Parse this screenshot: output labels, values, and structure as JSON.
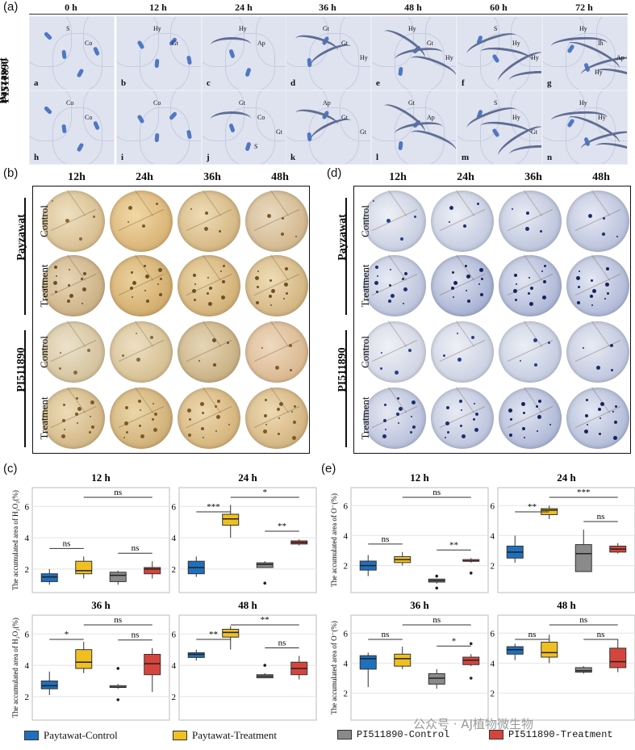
{
  "panel_labels": {
    "a": "(a)",
    "b": "(b)",
    "c": "(c)",
    "d": "(d)",
    "e": "(e)"
  },
  "panel_a": {
    "times": [
      "0 h",
      "12 h",
      "24 h",
      "36 h",
      "48 h",
      "60 h",
      "72 h"
    ],
    "genotypes": [
      "Payzawat",
      "PI511890"
    ],
    "letters_row1": [
      "a",
      "b",
      "c",
      "d",
      "e",
      "f",
      "g"
    ],
    "letters_row2": [
      "h",
      "i",
      "j",
      "k",
      "l",
      "m",
      "n"
    ],
    "annotations_row1": [
      [
        "S",
        "Co"
      ],
      [
        "Hy",
        "Gt"
      ],
      [
        "Hy",
        "Ap"
      ],
      [
        "Gt",
        "Gt",
        "Hy"
      ],
      [
        "Hy",
        "Gt",
        "Hy"
      ],
      [
        "S",
        "Hy",
        "Hy"
      ],
      [
        "Hy",
        "Ih",
        "Ap",
        "Hy"
      ]
    ],
    "annotations_row2": [
      [
        "Co",
        "Co"
      ],
      [
        "Co"
      ],
      [
        "Gt",
        "Co",
        "Gt",
        "S"
      ],
      [
        "Ap",
        "Gt",
        "Gt"
      ],
      [
        "Gt",
        "Ap"
      ],
      [
        "S",
        "Hy",
        "Gt"
      ],
      [
        "Hy",
        "Hy"
      ]
    ]
  },
  "panel_b": {
    "times": [
      "12h",
      "24h",
      "36h",
      "48h"
    ],
    "genotypes": [
      "Payzawat",
      "PI511890"
    ],
    "conditions": [
      "Control",
      "Treatment"
    ],
    "stain_color": "#d4b98a"
  },
  "panel_d": {
    "times": [
      "12h",
      "24h",
      "36h",
      "48h"
    ],
    "genotypes": [
      "Payzawat",
      "PI511890"
    ],
    "conditions": [
      "Control",
      "Treatment"
    ],
    "stain_color": "#b9c3de"
  },
  "legend": [
    {
      "label": "Paytawat-Control",
      "color": "#1f6fbf"
    },
    {
      "label": "Paytawat-Treatment",
      "color": "#f0c020"
    },
    {
      "label": "PI511890-Control",
      "color": "#8a8a8a"
    },
    {
      "label": "PI511890-Treatment",
      "color": "#d6453d"
    }
  ],
  "watermark": "公众号 · AJ植物微生物",
  "chart_data": [
    {
      "panel": "c",
      "type": "boxplot",
      "title": "12 h",
      "ylabel": "The accumulated area of H₂O₂(%)",
      "ylim": [
        0.5,
        7.2
      ],
      "yticks": [
        2,
        4,
        6
      ],
      "groups": [
        "Paytawat-Control",
        "Paytawat-Treatment",
        "PI511890-Control",
        "PI511890-Treatment"
      ],
      "boxes": [
        {
          "min": 1.0,
          "q1": 1.2,
          "median": 1.5,
          "q3": 1.7,
          "max": 2.0
        },
        {
          "min": 1.4,
          "q1": 1.7,
          "median": 1.9,
          "q3": 2.5,
          "max": 2.8
        },
        {
          "min": 1.0,
          "q1": 1.2,
          "median": 1.6,
          "q3": 1.8,
          "max": 1.9
        },
        {
          "min": 1.4,
          "q1": 1.7,
          "median": 2.0,
          "q3": 2.1,
          "max": 2.5
        }
      ],
      "outliers": [
        [],
        [],
        [],
        []
      ],
      "signif": [
        {
          "from": 0,
          "to": 1,
          "label": "ns",
          "level": 0
        },
        {
          "from": 2,
          "to": 3,
          "label": "ns",
          "level": 0
        },
        {
          "from": 1,
          "to": 3,
          "label": "ns",
          "level": 1
        }
      ]
    },
    {
      "panel": "c",
      "type": "boxplot",
      "title": "24 h",
      "ylim": [
        0.5,
        7.2
      ],
      "yticks": [
        2,
        4,
        6
      ],
      "boxes": [
        {
          "min": 1.5,
          "q1": 1.7,
          "median": 2.1,
          "q3": 2.5,
          "max": 2.8
        },
        {
          "min": 4.0,
          "q1": 4.8,
          "median": 5.2,
          "q3": 5.5,
          "max": 6.1
        },
        {
          "min": 2.1,
          "q1": 2.1,
          "median": 2.3,
          "q3": 2.4,
          "max": 2.5
        },
        {
          "min": 3.5,
          "q1": 3.6,
          "median": 3.7,
          "q3": 3.8,
          "max": 3.9
        }
      ],
      "outliers": [
        [],
        [],
        [
          1.1
        ],
        []
      ],
      "signif": [
        {
          "from": 0,
          "to": 1,
          "label": "***",
          "level": 0
        },
        {
          "from": 2,
          "to": 3,
          "label": "**",
          "level": 0
        },
        {
          "from": 1,
          "to": 3,
          "label": "*",
          "level": 1
        }
      ]
    },
    {
      "panel": "c",
      "type": "boxplot",
      "title": "36 h",
      "ylabel": "The accumulated area of H₂O₂(%)",
      "ylim": [
        0.5,
        7.2
      ],
      "yticks": [
        2,
        4,
        6
      ],
      "boxes": [
        {
          "min": 2.1,
          "q1": 2.5,
          "median": 2.7,
          "q3": 3.0,
          "max": 3.6
        },
        {
          "min": 3.5,
          "q1": 3.8,
          "median": 4.2,
          "q3": 5.0,
          "max": 5.5
        },
        {
          "min": 2.5,
          "q1": 2.6,
          "median": 2.6,
          "q3": 2.7,
          "max": 2.8
        },
        {
          "min": 2.3,
          "q1": 3.4,
          "median": 4.1,
          "q3": 4.7,
          "max": 5.1
        }
      ],
      "outliers": [
        [],
        [],
        [
          1.8,
          3.8
        ],
        []
      ],
      "signif": [
        {
          "from": 0,
          "to": 1,
          "label": "*",
          "level": 0
        },
        {
          "from": 2,
          "to": 3,
          "label": "ns",
          "level": 0
        },
        {
          "from": 1,
          "to": 3,
          "label": "ns",
          "level": 1
        }
      ]
    },
    {
      "panel": "c",
      "type": "boxplot",
      "title": "48 h",
      "ylim": [
        0.5,
        7.2
      ],
      "yticks": [
        2,
        4,
        6
      ],
      "boxes": [
        {
          "min": 4.3,
          "q1": 4.5,
          "median": 4.7,
          "q3": 4.8,
          "max": 5.0
        },
        {
          "min": 5.0,
          "q1": 5.8,
          "median": 6.1,
          "q3": 6.3,
          "max": 6.5
        },
        {
          "min": 3.2,
          "q1": 3.2,
          "median": 3.3,
          "q3": 3.4,
          "max": 3.5
        },
        {
          "min": 3.1,
          "q1": 3.4,
          "median": 3.8,
          "q3": 4.2,
          "max": 4.6
        }
      ],
      "outliers": [
        [],
        [],
        [
          4.0
        ],
        []
      ],
      "signif": [
        {
          "from": 0,
          "to": 1,
          "label": "**",
          "level": 0
        },
        {
          "from": 2,
          "to": 3,
          "label": "ns",
          "level": 0
        },
        {
          "from": 1,
          "to": 3,
          "label": "**",
          "level": 1
        }
      ]
    },
    {
      "panel": "e",
      "type": "boxplot",
      "title": "12 h",
      "ylabel": "The accumulated area of O⁻(%)",
      "ylim": [
        0.2,
        7.2
      ],
      "yticks": [
        2,
        4,
        6
      ],
      "boxes": [
        {
          "min": 1.3,
          "q1": 1.7,
          "median": 2.0,
          "q3": 2.3,
          "max": 2.7
        },
        {
          "min": 2.0,
          "q1": 2.2,
          "median": 2.4,
          "q3": 2.6,
          "max": 2.9
        },
        {
          "min": 0.8,
          "q1": 0.9,
          "median": 1.0,
          "q3": 1.1,
          "max": 1.1
        },
        {
          "min": 2.2,
          "q1": 2.3,
          "median": 2.3,
          "q3": 2.4,
          "max": 2.5
        }
      ],
      "outliers": [
        [],
        [],
        [
          0.5,
          1.3
        ],
        [
          1.5
        ]
      ],
      "signif": [
        {
          "from": 0,
          "to": 1,
          "label": "ns",
          "level": 0
        },
        {
          "from": 2,
          "to": 3,
          "label": "**",
          "level": 0
        },
        {
          "from": 1,
          "to": 3,
          "label": "ns",
          "level": 1
        }
      ]
    },
    {
      "panel": "e",
      "type": "boxplot",
      "title": "24 h",
      "ylim": [
        0.2,
        7.2
      ],
      "yticks": [
        2,
        4,
        6
      ],
      "boxes": [
        {
          "min": 2.2,
          "q1": 2.5,
          "median": 2.9,
          "q3": 3.3,
          "max": 4.0
        },
        {
          "min": 5.1,
          "q1": 5.4,
          "median": 5.7,
          "q3": 5.8,
          "max": 6.0
        },
        {
          "min": 1.6,
          "q1": 1.6,
          "median": 2.8,
          "q3": 3.4,
          "max": 4.4
        },
        {
          "min": 2.8,
          "q1": 2.9,
          "median": 3.1,
          "q3": 3.3,
          "max": 3.5
        }
      ],
      "outliers": [
        [],
        [],
        [],
        []
      ],
      "signif": [
        {
          "from": 0,
          "to": 1,
          "label": "**",
          "level": 0
        },
        {
          "from": 2,
          "to": 3,
          "label": "ns",
          "level": 0
        },
        {
          "from": 1,
          "to": 3,
          "label": "***",
          "level": 1
        }
      ]
    },
    {
      "panel": "e",
      "type": "boxplot",
      "title": "36 h",
      "ylabel": "The accumulated area of O⁻(%)",
      "ylim": [
        0.2,
        7.2
      ],
      "yticks": [
        2,
        4,
        6
      ],
      "boxes": [
        {
          "min": 2.4,
          "q1": 3.6,
          "median": 4.3,
          "q3": 4.5,
          "max": 4.7
        },
        {
          "min": 3.6,
          "q1": 3.8,
          "median": 4.3,
          "q3": 4.6,
          "max": 5.1
        },
        {
          "min": 2.3,
          "q1": 2.6,
          "median": 3.0,
          "q3": 3.3,
          "max": 3.6
        },
        {
          "min": 3.8,
          "q1": 3.9,
          "median": 4.2,
          "q3": 4.4,
          "max": 4.6
        }
      ],
      "outliers": [
        [],
        [],
        [],
        [
          3.0,
          5.3
        ]
      ],
      "signif": [
        {
          "from": 0,
          "to": 1,
          "label": "ns",
          "level": 0
        },
        {
          "from": 2,
          "to": 3,
          "label": "*",
          "level": 0
        },
        {
          "from": 1,
          "to": 3,
          "label": "ns",
          "level": 1
        }
      ]
    },
    {
      "panel": "e",
      "type": "boxplot",
      "title": "48 h",
      "ylim": [
        0.2,
        7.2
      ],
      "yticks": [
        2,
        4,
        6
      ],
      "boxes": [
        {
          "min": 4.2,
          "q1": 4.6,
          "median": 4.9,
          "q3": 5.1,
          "max": 5.3
        },
        {
          "min": 4.0,
          "q1": 4.4,
          "median": 4.7,
          "q3": 5.4,
          "max": 5.9
        },
        {
          "min": 3.3,
          "q1": 3.4,
          "median": 3.5,
          "q3": 3.7,
          "max": 3.8
        },
        {
          "min": 3.4,
          "q1": 3.7,
          "median": 4.1,
          "q3": 5.0,
          "max": 5.6
        }
      ],
      "outliers": [
        [],
        [],
        [],
        []
      ],
      "signif": [
        {
          "from": 0,
          "to": 1,
          "label": "ns",
          "level": 0
        },
        {
          "from": 2,
          "to": 3,
          "label": "ns",
          "level": 0
        },
        {
          "from": 1,
          "to": 3,
          "label": "ns",
          "level": 1
        }
      ]
    }
  ]
}
